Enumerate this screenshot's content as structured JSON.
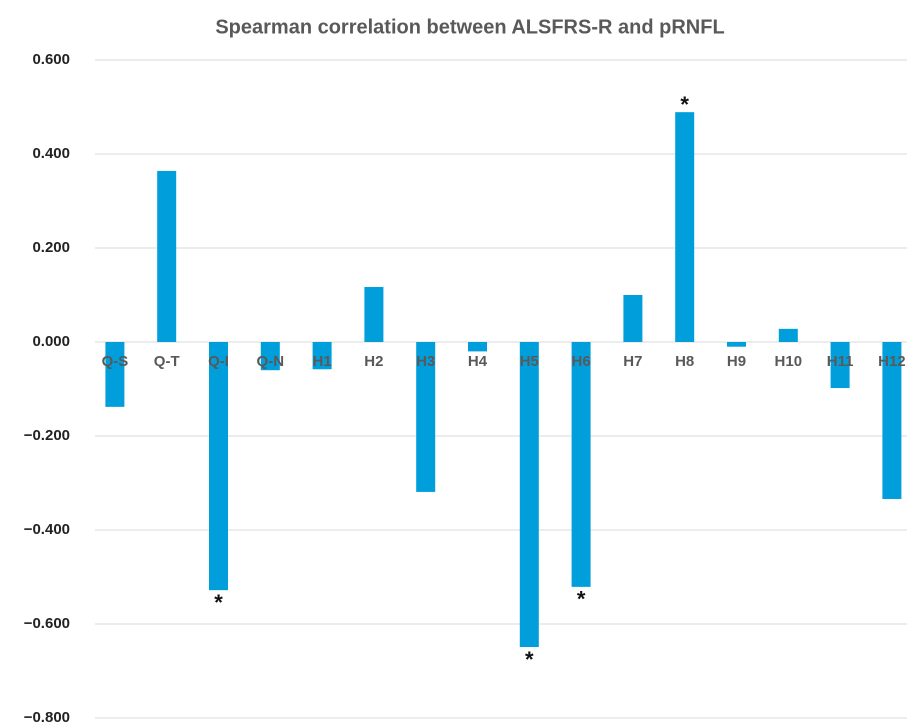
{
  "chart_data": {
    "type": "bar",
    "title": "Spearman correlation between ALSFRS-R and pRNFL",
    "categories": [
      "Q-S",
      "Q-T",
      "Q-I",
      "Q-N",
      "H1",
      "H2",
      "H3",
      "H4",
      "H5",
      "H6",
      "H7",
      "H8",
      "H9",
      "H10",
      "H11",
      "H12"
    ],
    "values": [
      -0.138,
      0.364,
      -0.528,
      -0.06,
      -0.058,
      0.117,
      -0.319,
      -0.02,
      -0.649,
      -0.521,
      0.1,
      0.489,
      -0.01,
      0.028,
      -0.098,
      -0.334
    ],
    "color": "#009fdc",
    "ylim": [
      -0.8,
      0.6
    ],
    "yticks": [
      {
        "value": -0.8,
        "label": "−0.800"
      },
      {
        "value": -0.6,
        "label": "−0.600"
      },
      {
        "value": -0.4,
        "label": "−0.400"
      },
      {
        "value": -0.2,
        "label": "−0.200"
      },
      {
        "value": 0,
        "label": "0.000"
      },
      {
        "value": 0.2,
        "label": "0.200"
      },
      {
        "value": 0.4,
        "label": "0.400"
      },
      {
        "value": 0.6,
        "label": "0.600"
      }
    ],
    "grid": true,
    "annotations": [
      {
        "text": "*",
        "category": "Q-I"
      },
      {
        "text": "*",
        "category": "H5"
      },
      {
        "text": "*",
        "category": "H6"
      },
      {
        "text": "*",
        "category": "H8"
      }
    ]
  }
}
